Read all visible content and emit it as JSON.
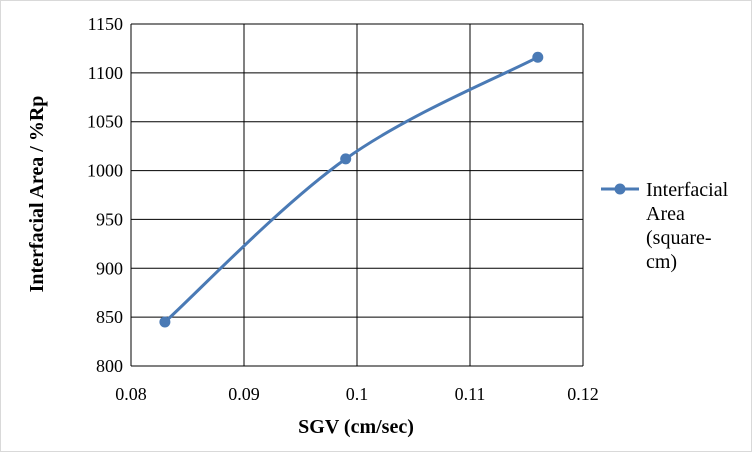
{
  "chart_data": {
    "type": "line",
    "title": "",
    "xlabel": "SGV (cm/sec)",
    "ylabel": "Interfacial Area / %Rp",
    "xlim": [
      0.08,
      0.12
    ],
    "ylim": [
      800,
      1150
    ],
    "x_ticks": [
      "0.08",
      "0.09",
      "0.1",
      "0.11",
      "0.12"
    ],
    "y_ticks": [
      "800",
      "850",
      "900",
      "950",
      "1000",
      "1050",
      "1100",
      "1150"
    ],
    "grid": true,
    "smooth": true,
    "legend_position": "right",
    "series": [
      {
        "name": "Interfacial Area (square-cm)",
        "legend_lines": [
          "Interfacial",
          "Area",
          "(square-",
          "cm)"
        ],
        "color": "#4a7ab5",
        "marker": "circle",
        "points": [
          {
            "x": 0.083,
            "y": 845
          },
          {
            "x": 0.099,
            "y": 1012
          },
          {
            "x": 0.116,
            "y": 1116
          }
        ]
      }
    ]
  }
}
